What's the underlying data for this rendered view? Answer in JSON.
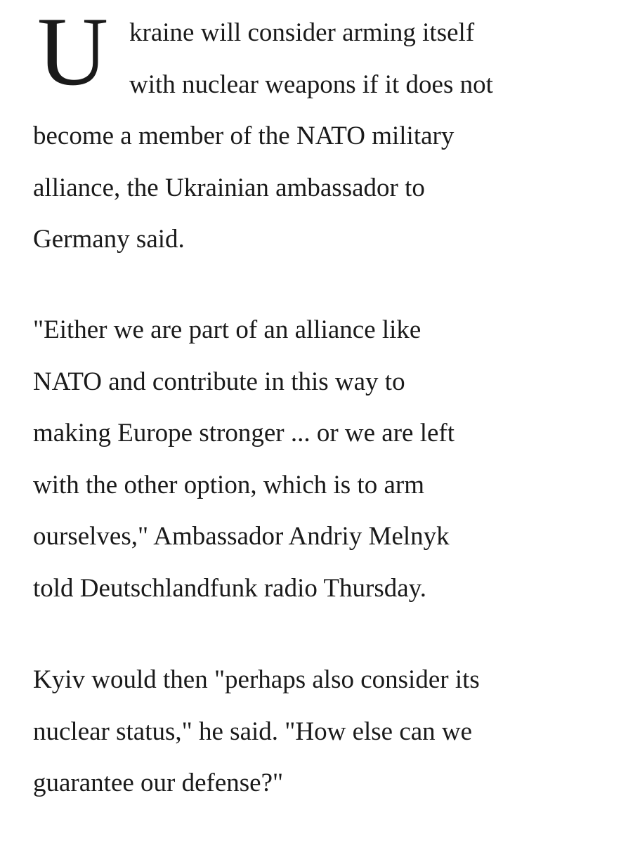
{
  "article": {
    "dropcap": "U",
    "paragraph1": {
      "lines": [
        "kraine will consider arming itself",
        "with nuclear weapons if it does not",
        "become a member of the NATO military",
        "alliance, the Ukrainian ambassador to",
        "Germany said."
      ]
    },
    "paragraph2": {
      "lines": [
        "\"Either we are part of an alliance like",
        "NATO and contribute in this way to",
        "making Europe stronger ... or we are left",
        "with the other option, which is to arm",
        "ourselves,\" Ambassador Andriy Melnyk",
        "told Deutschlandfunk radio Thursday."
      ]
    },
    "paragraph3": {
      "lines": [
        "Kyiv would then \"perhaps also consider its",
        "nuclear status,\" he said. \"How else can we",
        "guarantee our defense?\""
      ]
    }
  }
}
